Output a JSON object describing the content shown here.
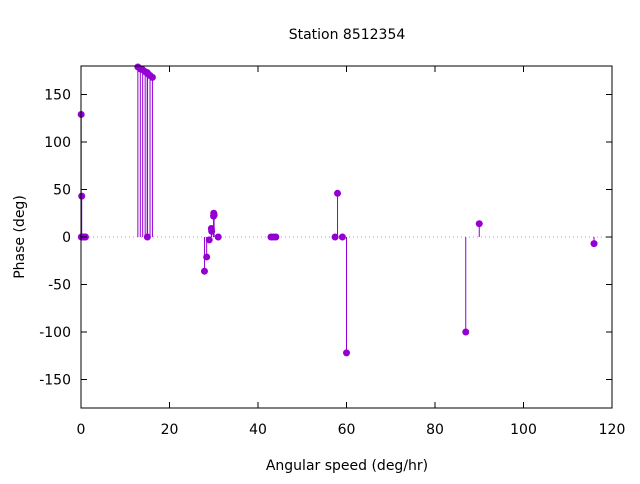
{
  "chart_data": {
    "type": "stem",
    "title": "Station 8512354",
    "xlabel": "Angular speed (deg/hr)",
    "ylabel": "Phase (deg)",
    "xlim": [
      0,
      120
    ],
    "ylim": [
      -180,
      180
    ],
    "x_ticks": [
      0,
      20,
      40,
      60,
      80,
      100,
      120
    ],
    "y_ticks": [
      -150,
      -100,
      -50,
      0,
      50,
      100,
      150
    ],
    "zero_line": "dotted",
    "grid": false,
    "colors": {
      "series": "#9400d3",
      "axis": "#000000",
      "zero_line": "#a0a0a0"
    },
    "series": [
      {
        "points": [
          {
            "x": 0.04,
            "y": 129
          },
          {
            "x": 0.08,
            "y": 0
          },
          {
            "x": 0.16,
            "y": 43
          },
          {
            "x": 0.5,
            "y": 0
          },
          {
            "x": 0.9,
            "y": 0
          },
          {
            "x": 1.0,
            "y": 0
          },
          {
            "x": 12.85,
            "y": 179
          },
          {
            "x": 13.4,
            "y": 177
          },
          {
            "x": 13.94,
            "y": 176
          },
          {
            "x": 14.5,
            "y": 174
          },
          {
            "x": 14.96,
            "y": 173
          },
          {
            "x": 15.0,
            "y": 0
          },
          {
            "x": 15.04,
            "y": 172
          },
          {
            "x": 15.6,
            "y": 170
          },
          {
            "x": 16.14,
            "y": 168
          },
          {
            "x": 27.9,
            "y": -36
          },
          {
            "x": 28.4,
            "y": -21
          },
          {
            "x": 28.98,
            "y": -3
          },
          {
            "x": 29.46,
            "y": 9
          },
          {
            "x": 29.53,
            "y": 6
          },
          {
            "x": 29.96,
            "y": 22
          },
          {
            "x": 30.0,
            "y": 25
          },
          {
            "x": 30.08,
            "y": 23
          },
          {
            "x": 31.0,
            "y": 0
          },
          {
            "x": 42.93,
            "y": 0
          },
          {
            "x": 43.48,
            "y": 0
          },
          {
            "x": 44.03,
            "y": 0
          },
          {
            "x": 57.42,
            "y": 0
          },
          {
            "x": 57.97,
            "y": 46
          },
          {
            "x": 59.07,
            "y": 0
          },
          {
            "x": 60.0,
            "y": -122
          },
          {
            "x": 86.95,
            "y": -100
          },
          {
            "x": 90.0,
            "y": 14
          },
          {
            "x": 115.94,
            "y": -7
          }
        ]
      }
    ]
  }
}
